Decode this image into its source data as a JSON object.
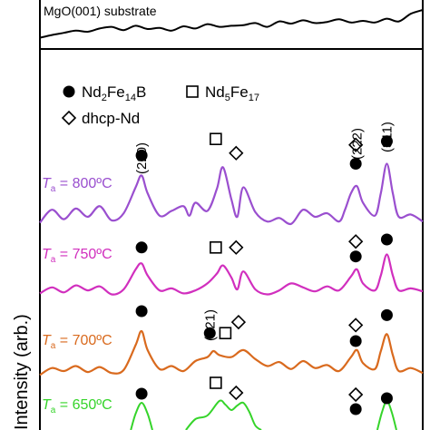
{
  "chart_data": {
    "type": "line",
    "ylabel": "Intensity  (arb.)",
    "substrate_label": "MgO(001) substrate",
    "legend": {
      "placement": "top-left",
      "entries": [
        {
          "marker": "filled-circle",
          "label_main": "Nd",
          "sub1": "2",
          "mid": "Fe",
          "sub2": "14",
          "tail": "B"
        },
        {
          "marker": "open-square",
          "label_main": "Nd",
          "sub1": "5",
          "mid": "Fe",
          "sub2": "17",
          "tail": ""
        },
        {
          "marker": "open-diamond",
          "label_main": "dhcp-Nd",
          "sub1": "",
          "mid": "",
          "sub2": "",
          "tail": ""
        }
      ]
    },
    "peak_labels": [
      {
        "text": "(220)",
        "x": 38.5
      },
      {
        "text": "(222)",
        "x": 56.5
      },
      {
        "text": "(311)",
        "x": 59.0
      },
      {
        "text": "(221)",
        "x": 44.2
      }
    ],
    "series": [
      {
        "name": "T_a = 800 °C",
        "prefix": "T",
        "sub": "a",
        "value_text": " = 800ºC",
        "color": "#9a4fcf",
        "x": [
          30,
          31,
          32,
          33,
          34,
          35,
          36,
          37,
          38,
          38.5,
          39,
          40,
          41,
          42,
          42.5,
          43,
          44,
          44.8,
          45.3,
          46,
          46.5,
          47,
          48,
          49,
          50,
          51,
          52,
          53,
          54,
          55,
          55.5,
          56,
          56.5,
          57,
          58,
          58.5,
          59,
          59.5,
          60,
          61,
          62
        ],
        "values": [
          0.5,
          1.6,
          0.8,
          1.7,
          1.0,
          1.9,
          0.7,
          1.3,
          3.5,
          4.5,
          3.0,
          1.1,
          1.5,
          1.9,
          1.1,
          2.2,
          1.5,
          3.4,
          5.2,
          2.5,
          1.0,
          3.5,
          1.4,
          0.6,
          0.9,
          0.4,
          1.6,
          1.0,
          1.3,
          0.6,
          1.6,
          3.0,
          3.6,
          2.2,
          1.1,
          3.0,
          5.5,
          3.0,
          1.0,
          1.2,
          0.6
        ]
      },
      {
        "name": "T_a = 750 °C",
        "prefix": "T",
        "sub": "a",
        "value_text": " = 750ºC",
        "color": "#d12fbe",
        "x": [
          30,
          31,
          32,
          33,
          34,
          35,
          36,
          37,
          38,
          38.5,
          39,
          40,
          41,
          42,
          43,
          44,
          44.8,
          45.3,
          46,
          46.5,
          47,
          48,
          49,
          50,
          51,
          52,
          53,
          54,
          55,
          56,
          56.5,
          57,
          58,
          58.5,
          59,
          59.5,
          60,
          61,
          62
        ],
        "values": [
          0.6,
          1.2,
          0.7,
          1.4,
          0.9,
          1.3,
          0.5,
          1.0,
          3.0,
          3.6,
          2.4,
          0.9,
          1.1,
          0.6,
          0.9,
          1.6,
          2.6,
          3.4,
          2.2,
          1.0,
          2.8,
          1.0,
          0.5,
          0.9,
          1.6,
          1.2,
          0.8,
          1.3,
          0.9,
          2.3,
          3.0,
          1.6,
          0.9,
          2.4,
          4.5,
          2.4,
          0.9,
          1.1,
          0.8
        ]
      },
      {
        "name": "T_a = 700 °C",
        "prefix": "T",
        "sub": "a",
        "value_text": " = 700ºC",
        "color": "#d96a1e",
        "x": [
          30,
          31,
          32,
          33,
          34,
          35,
          36,
          37,
          38,
          38.5,
          39,
          40,
          41,
          42,
          43,
          44,
          44.5,
          45,
          46,
          47,
          48,
          49,
          50,
          51,
          52,
          53,
          54,
          55,
          56,
          56.5,
          57,
          58,
          58.5,
          59,
          59.5,
          60,
          61,
          62
        ],
        "values": [
          0.6,
          1.3,
          1.0,
          1.5,
          0.9,
          1.4,
          0.8,
          1.1,
          3.6,
          5.0,
          3.1,
          1.2,
          1.5,
          1.0,
          2.0,
          2.4,
          3.0,
          2.6,
          2.4,
          3.1,
          2.2,
          1.5,
          1.9,
          1.2,
          2.0,
          1.3,
          1.6,
          1.0,
          2.4,
          3.1,
          1.8,
          1.2,
          3.0,
          4.7,
          2.6,
          1.0,
          1.3,
          0.8
        ]
      },
      {
        "name": "T_a = 650 °C",
        "prefix": "T",
        "sub": "a",
        "value_text": " = 650ºC",
        "color": "#35d42a",
        "x": [
          37.6,
          38,
          38.5,
          39,
          39.4,
          42.2,
          43,
          44,
          45,
          45.5,
          46,
          46.5,
          47,
          47.5,
          48,
          48.5,
          58.2,
          58.6,
          59,
          59.4,
          59.8
        ],
        "values": [
          0.0,
          1.8,
          3.0,
          1.8,
          0.0,
          0.0,
          1.2,
          1.6,
          3.2,
          2.8,
          2.2,
          2.7,
          3.0,
          2.0,
          0.5,
          0.0,
          0.0,
          2.0,
          3.2,
          2.0,
          0.0
        ]
      },
      {
        "name": "MgO(001) substrate",
        "prefix": "",
        "sub": "",
        "value_text": "",
        "color": "#000000",
        "x": [
          30,
          31,
          32,
          33,
          34,
          35,
          36,
          37,
          38,
          39,
          40,
          41,
          42,
          43,
          44,
          45,
          46,
          47,
          48,
          49,
          50,
          51,
          52,
          53,
          54,
          55,
          56,
          57,
          58,
          59,
          60,
          61,
          62
        ],
        "values": [
          0.4,
          0.9,
          1.3,
          1.7,
          1.5,
          2.1,
          2.4,
          1.8,
          2.6,
          2.0,
          2.2,
          1.7,
          2.5,
          2.1,
          2.9,
          2.4,
          2.6,
          2.7,
          3.1,
          2.4,
          3.4,
          3.0,
          3.6,
          3.1,
          3.3,
          3.8,
          3.2,
          3.5,
          3.2,
          3.9,
          3.4,
          4.8,
          5.5
        ]
      }
    ],
    "markers": [
      {
        "series": 0,
        "type": "filled-circle",
        "x": 38.5,
        "y": 6.2
      },
      {
        "series": 0,
        "type": "open-square",
        "x": 44.7,
        "y": 7.6
      },
      {
        "series": 0,
        "type": "open-diamond",
        "x": 46.4,
        "y": 6.4
      },
      {
        "series": 0,
        "type": "filled-circle",
        "x": 56.4,
        "y": 5.5
      },
      {
        "series": 0,
        "type": "open-diamond",
        "x": 56.4,
        "y": 7.1
      },
      {
        "series": 0,
        "type": "filled-circle",
        "x": 59.0,
        "y": 7.4
      },
      {
        "series": 1,
        "type": "filled-circle",
        "x": 38.5,
        "y": 5.2
      },
      {
        "series": 1,
        "type": "open-square",
        "x": 44.7,
        "y": 5.2
      },
      {
        "series": 1,
        "type": "open-diamond",
        "x": 46.4,
        "y": 5.2
      },
      {
        "series": 1,
        "type": "filled-circle",
        "x": 56.4,
        "y": 4.3
      },
      {
        "series": 1,
        "type": "open-diamond",
        "x": 56.4,
        "y": 5.8
      },
      {
        "series": 1,
        "type": "filled-circle",
        "x": 59.0,
        "y": 6.0
      },
      {
        "series": 2,
        "type": "filled-circle",
        "x": 38.5,
        "y": 7.0
      },
      {
        "series": 2,
        "type": "filled-circle",
        "x": 44.2,
        "y": 4.8
      },
      {
        "series": 2,
        "type": "open-square",
        "x": 45.5,
        "y": 4.8
      },
      {
        "series": 2,
        "type": "open-diamond",
        "x": 46.6,
        "y": 5.9
      },
      {
        "series": 2,
        "type": "filled-circle",
        "x": 56.4,
        "y": 4.0
      },
      {
        "series": 2,
        "type": "open-diamond",
        "x": 56.4,
        "y": 5.6
      },
      {
        "series": 2,
        "type": "filled-circle",
        "x": 59.0,
        "y": 6.6
      },
      {
        "series": 3,
        "type": "filled-circle",
        "x": 38.5,
        "y": 4.0
      },
      {
        "series": 3,
        "type": "open-square",
        "x": 44.7,
        "y": 5.2
      },
      {
        "series": 3,
        "type": "open-diamond",
        "x": 46.4,
        "y": 4.1
      },
      {
        "series": 3,
        "type": "open-diamond",
        "x": 56.4,
        "y": 3.9
      },
      {
        "series": 3,
        "type": "filled-circle",
        "x": 56.4,
        "y": 2.3
      },
      {
        "series": 3,
        "type": "filled-circle",
        "x": 59.0,
        "y": 3.5
      }
    ],
    "grid": false
  }
}
